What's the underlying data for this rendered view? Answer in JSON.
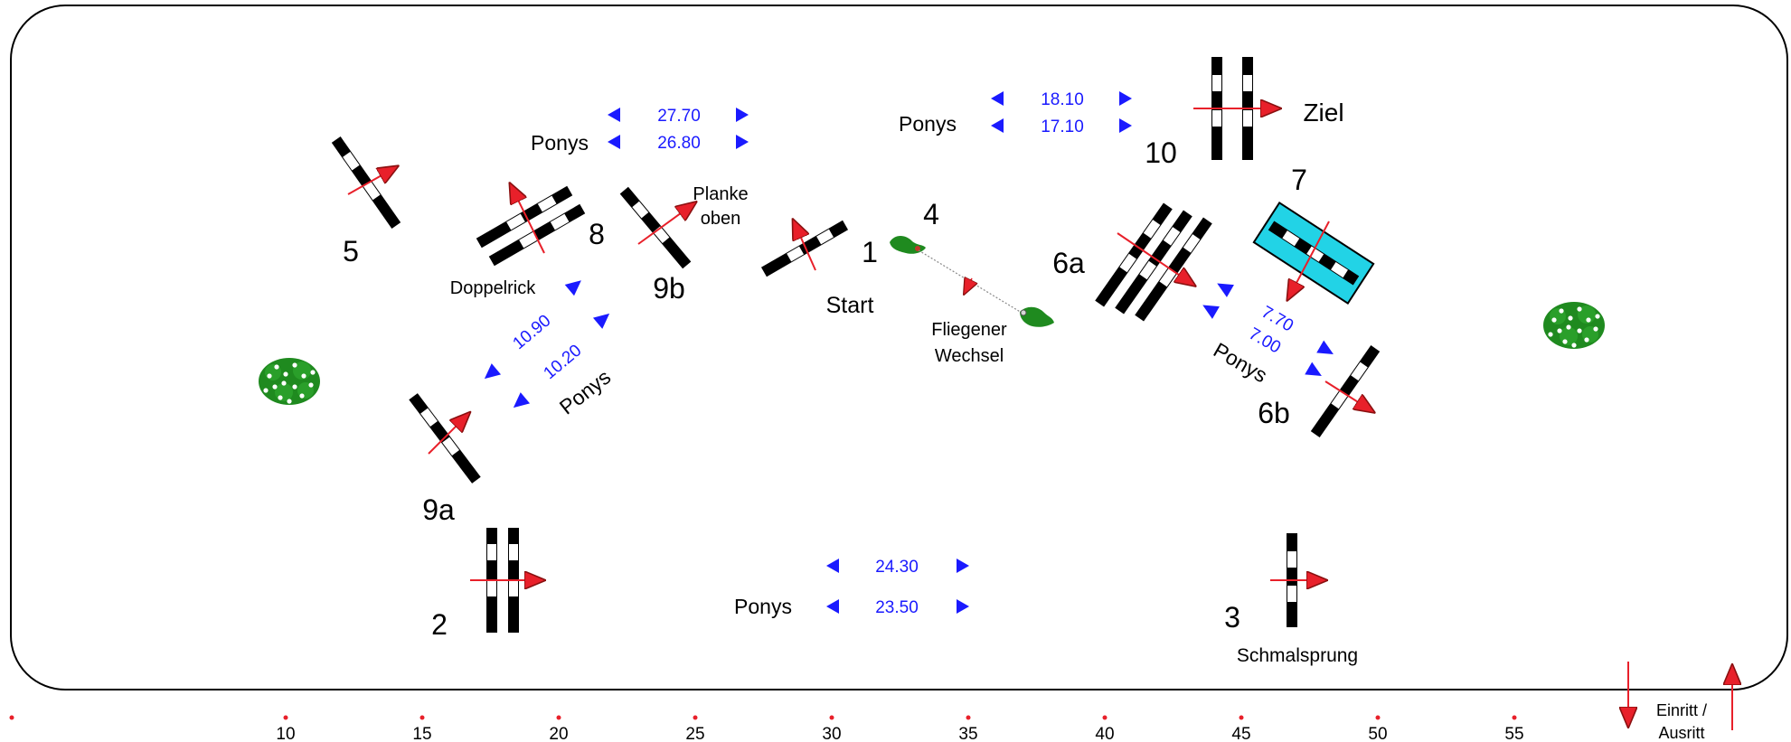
{
  "colors": {
    "arena_border": "#000000",
    "pole_black": "#000000",
    "pole_white": "#ffffff",
    "direction_arrow": "#e8202a",
    "distance_text": "#1a1aff",
    "water_fill": "#22d3e6",
    "bush_green": "#1f8a1f",
    "bush_flower": "#ffffff",
    "scale_dot": "#e8202a"
  },
  "obstacles": [
    {
      "id": "1",
      "label": "1",
      "note": "Start"
    },
    {
      "id": "2",
      "label": "2",
      "note": ""
    },
    {
      "id": "3",
      "label": "3",
      "note": "Schmalsprung"
    },
    {
      "id": "4",
      "label": "4",
      "note": "Fliegener Wechsel"
    },
    {
      "id": "5",
      "label": "5",
      "note": ""
    },
    {
      "id": "6a",
      "label": "6a",
      "note": ""
    },
    {
      "id": "6b",
      "label": "6b",
      "note": ""
    },
    {
      "id": "7",
      "label": "7",
      "note": ""
    },
    {
      "id": "8",
      "label": "8",
      "note": "Doppelrick"
    },
    {
      "id": "9a",
      "label": "9a",
      "note": ""
    },
    {
      "id": "9b",
      "label": "9b",
      "note": "Planke oben"
    },
    {
      "id": "10",
      "label": "10",
      "note": "Ziel"
    }
  ],
  "labels": {
    "start": "Start",
    "ziel": "Ziel",
    "schmalsprung": "Schmalsprung",
    "doppelrick": "Doppelrick",
    "planke_1": "Planke",
    "planke_2": "oben",
    "fliegener_1": "Fliegener",
    "fliegener_2": "Wechsel",
    "entry_1": "Einritt /",
    "entry_2": "Ausritt"
  },
  "distances": [
    {
      "id": "top_left",
      "values": [
        "27.70",
        "26.80"
      ],
      "ponys": "Ponys"
    },
    {
      "id": "top_right",
      "values": [
        "18.10",
        "17.10"
      ],
      "ponys": "Ponys"
    },
    {
      "id": "bottom",
      "values": [
        "24.30",
        "23.50"
      ],
      "ponys": "Ponys"
    },
    {
      "id": "left_diag",
      "values": [
        "10.90",
        "10.20"
      ],
      "ponys": "Ponys"
    },
    {
      "id": "right_diag",
      "values": [
        "7.70",
        "7.00"
      ],
      "ponys": "Ponys"
    }
  ],
  "scale": {
    "ticks": [
      "10",
      "15",
      "20",
      "25",
      "30",
      "35",
      "40",
      "45",
      "50",
      "55"
    ]
  }
}
